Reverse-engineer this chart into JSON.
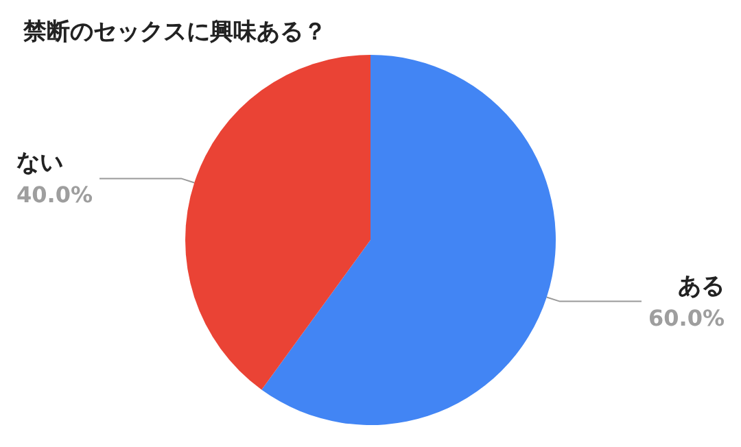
{
  "chart_data": {
    "type": "pie",
    "title": "禁断のセックスに興味ある？",
    "categories": [
      "ある",
      "ない"
    ],
    "values": [
      60.0,
      40.0
    ],
    "colors": [
      "#4285f4",
      "#ea4335"
    ],
    "value_labels": [
      "60.0%",
      "40.0%"
    ],
    "legend": false
  }
}
